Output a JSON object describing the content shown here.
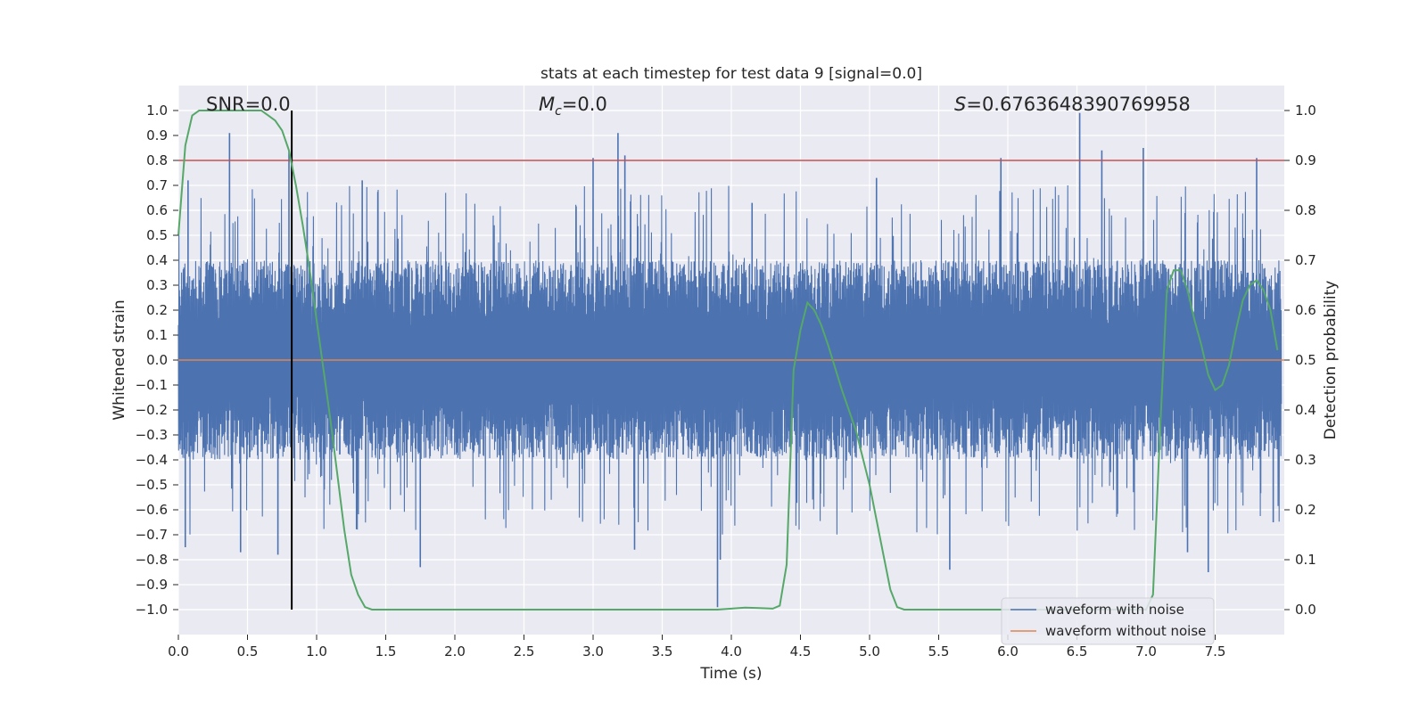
{
  "chart_data": {
    "type": "line",
    "title": "stats at each timestep for test data 9 [signal=0.0]",
    "xlabel": "Time (s)",
    "ylabel": "Whitened strain",
    "y2label": "Detection probability",
    "xlim": [
      0.0,
      8.0
    ],
    "ylim": [
      -1.1,
      1.1
    ],
    "y2lim": [
      -0.05,
      1.05
    ],
    "x_ticks": [
      "0.0",
      "0.5",
      "1.0",
      "1.5",
      "2.0",
      "2.5",
      "3.0",
      "3.5",
      "4.0",
      "4.5",
      "5.0",
      "5.5",
      "6.0",
      "6.5",
      "7.0",
      "7.5"
    ],
    "y_ticks": [
      "−1.0",
      "−0.9",
      "−0.8",
      "−0.7",
      "−0.6",
      "−0.5",
      "−0.4",
      "−0.3",
      "−0.2",
      "−0.1",
      "0.0",
      "0.1",
      "0.2",
      "0.3",
      "0.4",
      "0.5",
      "0.6",
      "0.7",
      "0.8",
      "0.9",
      "1.0"
    ],
    "y2_ticks": [
      "0.0",
      "0.1",
      "0.2",
      "0.3",
      "0.4",
      "0.5",
      "0.6",
      "0.7",
      "0.8",
      "0.9",
      "1.0"
    ],
    "grid": true,
    "legend_position": "lower-right",
    "annotations": {
      "snr": "SNR=0.0",
      "mc_symbol": "M",
      "mc_sub": "c",
      "mc_value": "=0.0",
      "s_symbol": "S",
      "s_value": "=0.6763648390769958"
    },
    "reference_lines": {
      "threshold_y2": 0.9,
      "marker_x": 0.82,
      "marker_ymin": -1.0,
      "marker_ymax": 1.0
    },
    "series": [
      {
        "name": "waveform with noise",
        "color": "#4c72b0",
        "envelope_typical": 0.4,
        "peaks": [
          [
            0.05,
            -0.75
          ],
          [
            0.07,
            0.72
          ],
          [
            0.37,
            0.91
          ],
          [
            0.45,
            -0.77
          ],
          [
            0.72,
            -0.78
          ],
          [
            0.8,
            0.84
          ],
          [
            1.33,
            0.72
          ],
          [
            1.75,
            -0.83
          ],
          [
            3.0,
            0.81
          ],
          [
            3.18,
            0.91
          ],
          [
            3.23,
            0.82
          ],
          [
            3.3,
            -0.76
          ],
          [
            3.9,
            -0.99
          ],
          [
            3.92,
            -0.8
          ],
          [
            4.15,
            0.63
          ],
          [
            5.05,
            0.73
          ],
          [
            5.58,
            -0.84
          ],
          [
            5.95,
            0.81
          ],
          [
            6.52,
            0.99
          ],
          [
            6.68,
            0.84
          ],
          [
            6.98,
            0.85
          ],
          [
            7.3,
            -0.77
          ],
          [
            7.45,
            -0.85
          ],
          [
            7.8,
            0.81
          ],
          [
            7.92,
            -0.65
          ]
        ]
      },
      {
        "name": "waveform without noise",
        "color": "#dd8452",
        "x": [
          0.0,
          8.0
        ],
        "y": [
          0.0,
          0.0
        ]
      },
      {
        "name": "detection probability",
        "color": "#55a868",
        "axis": "y2",
        "x": [
          0.0,
          0.05,
          0.1,
          0.15,
          0.2,
          0.3,
          0.4,
          0.5,
          0.6,
          0.65,
          0.7,
          0.75,
          0.8,
          0.85,
          0.9,
          0.95,
          1.0,
          1.05,
          1.1,
          1.15,
          1.2,
          1.25,
          1.3,
          1.35,
          1.4,
          1.5,
          2.0,
          2.5,
          3.0,
          3.5,
          3.9,
          4.0,
          4.1,
          4.2,
          4.3,
          4.35,
          4.4,
          4.45,
          4.5,
          4.55,
          4.6,
          4.65,
          4.7,
          4.8,
          4.9,
          5.0,
          5.1,
          5.15,
          5.2,
          5.25,
          5.3,
          5.5,
          6.0,
          6.5,
          7.0,
          7.05,
          7.1,
          7.15,
          7.2,
          7.25,
          7.3,
          7.35,
          7.4,
          7.45,
          7.5,
          7.55,
          7.6,
          7.65,
          7.7,
          7.75,
          7.8,
          7.85,
          7.9,
          7.95
        ],
        "y": [
          0.75,
          0.93,
          0.99,
          1.0,
          1.0,
          1.0,
          1.0,
          1.0,
          1.0,
          0.99,
          0.98,
          0.96,
          0.92,
          0.85,
          0.77,
          0.68,
          0.58,
          0.48,
          0.38,
          0.27,
          0.16,
          0.07,
          0.03,
          0.005,
          0.0,
          0.0,
          0.0,
          0.0,
          0.0,
          0.0,
          0.0,
          0.002,
          0.004,
          0.003,
          0.002,
          0.008,
          0.09,
          0.48,
          0.56,
          0.615,
          0.6,
          0.57,
          0.53,
          0.44,
          0.36,
          0.25,
          0.11,
          0.04,
          0.005,
          0.0,
          0.0,
          0.0,
          0.0,
          0.0,
          0.0,
          0.03,
          0.35,
          0.64,
          0.68,
          0.68,
          0.64,
          0.58,
          0.53,
          0.47,
          0.44,
          0.45,
          0.49,
          0.56,
          0.62,
          0.65,
          0.66,
          0.64,
          0.6,
          0.52
        ]
      }
    ]
  }
}
